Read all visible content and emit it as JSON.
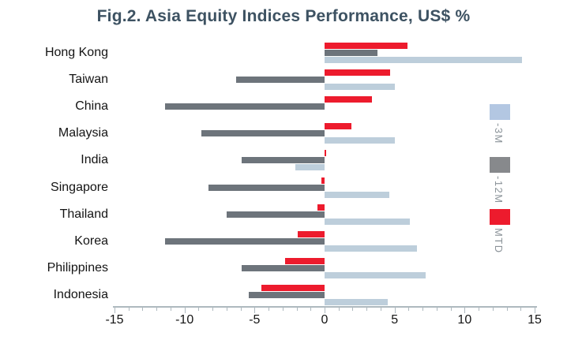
{
  "title": "Fig.2. Asia Equity Indices Performance, US$ %",
  "chart_data": {
    "type": "bar",
    "orientation": "horizontal",
    "title": "Fig.2. Asia Equity Indices Performance, US$ %",
    "categories": [
      "Hong Kong",
      "Taiwan",
      "China",
      "Malaysia",
      "India",
      "Singapore",
      "Thailand",
      "Korea",
      "Philippines",
      "Indonesia"
    ],
    "series": [
      {
        "name": "MTD",
        "color": "#ed1b2d",
        "values": [
          5.9,
          4.7,
          3.4,
          1.9,
          0.1,
          -0.2,
          -0.5,
          -1.9,
          -2.8,
          -4.5
        ]
      },
      {
        "name": "-12M",
        "color": "#6d747b",
        "values": [
          3.8,
          -6.3,
          -11.4,
          -8.8,
          -5.9,
          -8.3,
          -7.0,
          -11.4,
          -5.9,
          -5.4
        ]
      },
      {
        "name": "-3M",
        "color": "#bdcedb",
        "values": [
          14.1,
          5.0,
          0.0,
          5.0,
          -2.1,
          4.6,
          6.1,
          6.6,
          7.2,
          4.5
        ]
      }
    ],
    "xlim": [
      -15,
      15
    ],
    "x_ticks": [
      -15,
      -10,
      -5,
      0,
      5,
      10,
      15
    ],
    "minor_tick_step": 1,
    "grid": false,
    "legend_position": "right",
    "legend": [
      {
        "label": "-3M",
        "color": "#b3c7e2"
      },
      {
        "label": "-12M",
        "color": "#87898c"
      },
      {
        "label": "MTD",
        "color": "#ed1b2d"
      }
    ]
  }
}
